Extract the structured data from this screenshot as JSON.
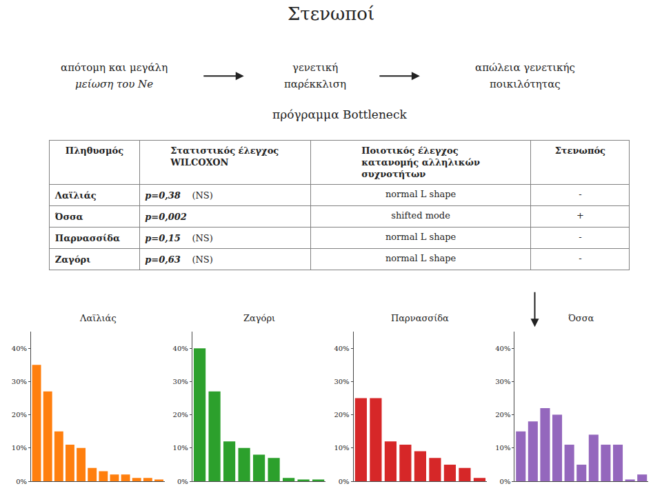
{
  "title": "Στενωποί",
  "annotations": [
    "απότομη και μεγάλη",
    "μείωση του Ne",
    "γενετική",
    "παρέκκλιση",
    "απώλεια γενετικής",
    "ποικιλότητας",
    "πρόγραμμα Bottleneck"
  ],
  "table": {
    "columns": [
      "Πληθυσμός",
      "Στατιστικός έλεγχος\nWILCOXON",
      "Ποιοτικός έλεγχος\nκατανομής αλληλικών\nσυχνοτήτων",
      "Στενωπός"
    ],
    "rows": [
      [
        "Λαϊλιάς",
        "p=0,38",
        "(NS)",
        "normal L shape",
        "-"
      ],
      [
        "Όσσα",
        "p=0,002",
        null,
        "shifted mode",
        "+"
      ],
      [
        "Παρνασσίδα",
        "p=0,15",
        "(NS)",
        "normal L shape",
        "-"
      ],
      [
        "Ζαγόρι",
        "p=0,63",
        "(NS)",
        "normal L shape",
        "-"
      ]
    ]
  },
  "chart_data": [
    {
      "type": "bar",
      "title": "Λαϊλιάς",
      "categories": [
        null,
        null,
        null,
        null,
        null,
        null,
        null,
        null,
        null,
        null,
        null,
        null
      ],
      "values": [
        35,
        27,
        15,
        11,
        10,
        4,
        3,
        2,
        2,
        1,
        1,
        0.5
      ],
      "ylim": [
        0,
        45
      ],
      "yticks": [
        {
          "value": 0,
          "label": "0%"
        },
        {
          "value": 10,
          "label": "10%"
        },
        {
          "value": 20,
          "label": "20%"
        },
        {
          "value": 30,
          "label": "30%"
        },
        {
          "value": 40,
          "label": "40%"
        }
      ],
      "grid": false,
      "tick_labels": "y"
    },
    {
      "type": "bar",
      "title": "Ζαγόρι",
      "categories": [
        null,
        null,
        null,
        null,
        null,
        null,
        null,
        null,
        null
      ],
      "values": [
        40,
        27,
        12,
        10,
        8,
        7,
        1,
        0.5,
        0.5
      ],
      "ylim": [
        0,
        45
      ],
      "yticks": [
        {
          "value": 0,
          "label": "0%"
        },
        {
          "value": 10,
          "label": "10%"
        },
        {
          "value": 20,
          "label": "20%"
        },
        {
          "value": 30,
          "label": "30%"
        },
        {
          "value": 40,
          "label": "40%"
        }
      ],
      "grid": false,
      "tick_labels": "y"
    },
    {
      "type": "bar",
      "title": "Παρνασσίδα",
      "categories": [
        null,
        null,
        null,
        null,
        null,
        null,
        null,
        null,
        null
      ],
      "values": [
        25,
        25,
        12,
        11,
        9,
        7,
        5,
        4,
        1
      ],
      "ylim": [
        0,
        45
      ],
      "yticks": [
        {
          "value": 0,
          "label": "0%"
        },
        {
          "value": 10,
          "label": "10%"
        },
        {
          "value": 20,
          "label": "20%"
        },
        {
          "value": 30,
          "label": "30%"
        },
        {
          "value": 40,
          "label": "40%"
        }
      ],
      "grid": false,
      "tick_labels": "y"
    },
    {
      "type": "bar",
      "title": "Όσσα",
      "categories": [
        null,
        null,
        null,
        null,
        null,
        null,
        null,
        null,
        null,
        null,
        null
      ],
      "values": [
        15,
        18,
        22,
        20,
        11,
        5,
        14,
        11,
        11,
        0.5,
        2
      ],
      "ylim": [
        0,
        45
      ],
      "yticks": [
        {
          "value": 0,
          "label": "0%"
        },
        {
          "value": 10,
          "label": "10%"
        },
        {
          "value": 20,
          "label": "20%"
        },
        {
          "value": 30,
          "label": "30%"
        },
        {
          "value": 40,
          "label": "40%"
        }
      ],
      "grid": false,
      "tick_labels": "y"
    }
  ]
}
